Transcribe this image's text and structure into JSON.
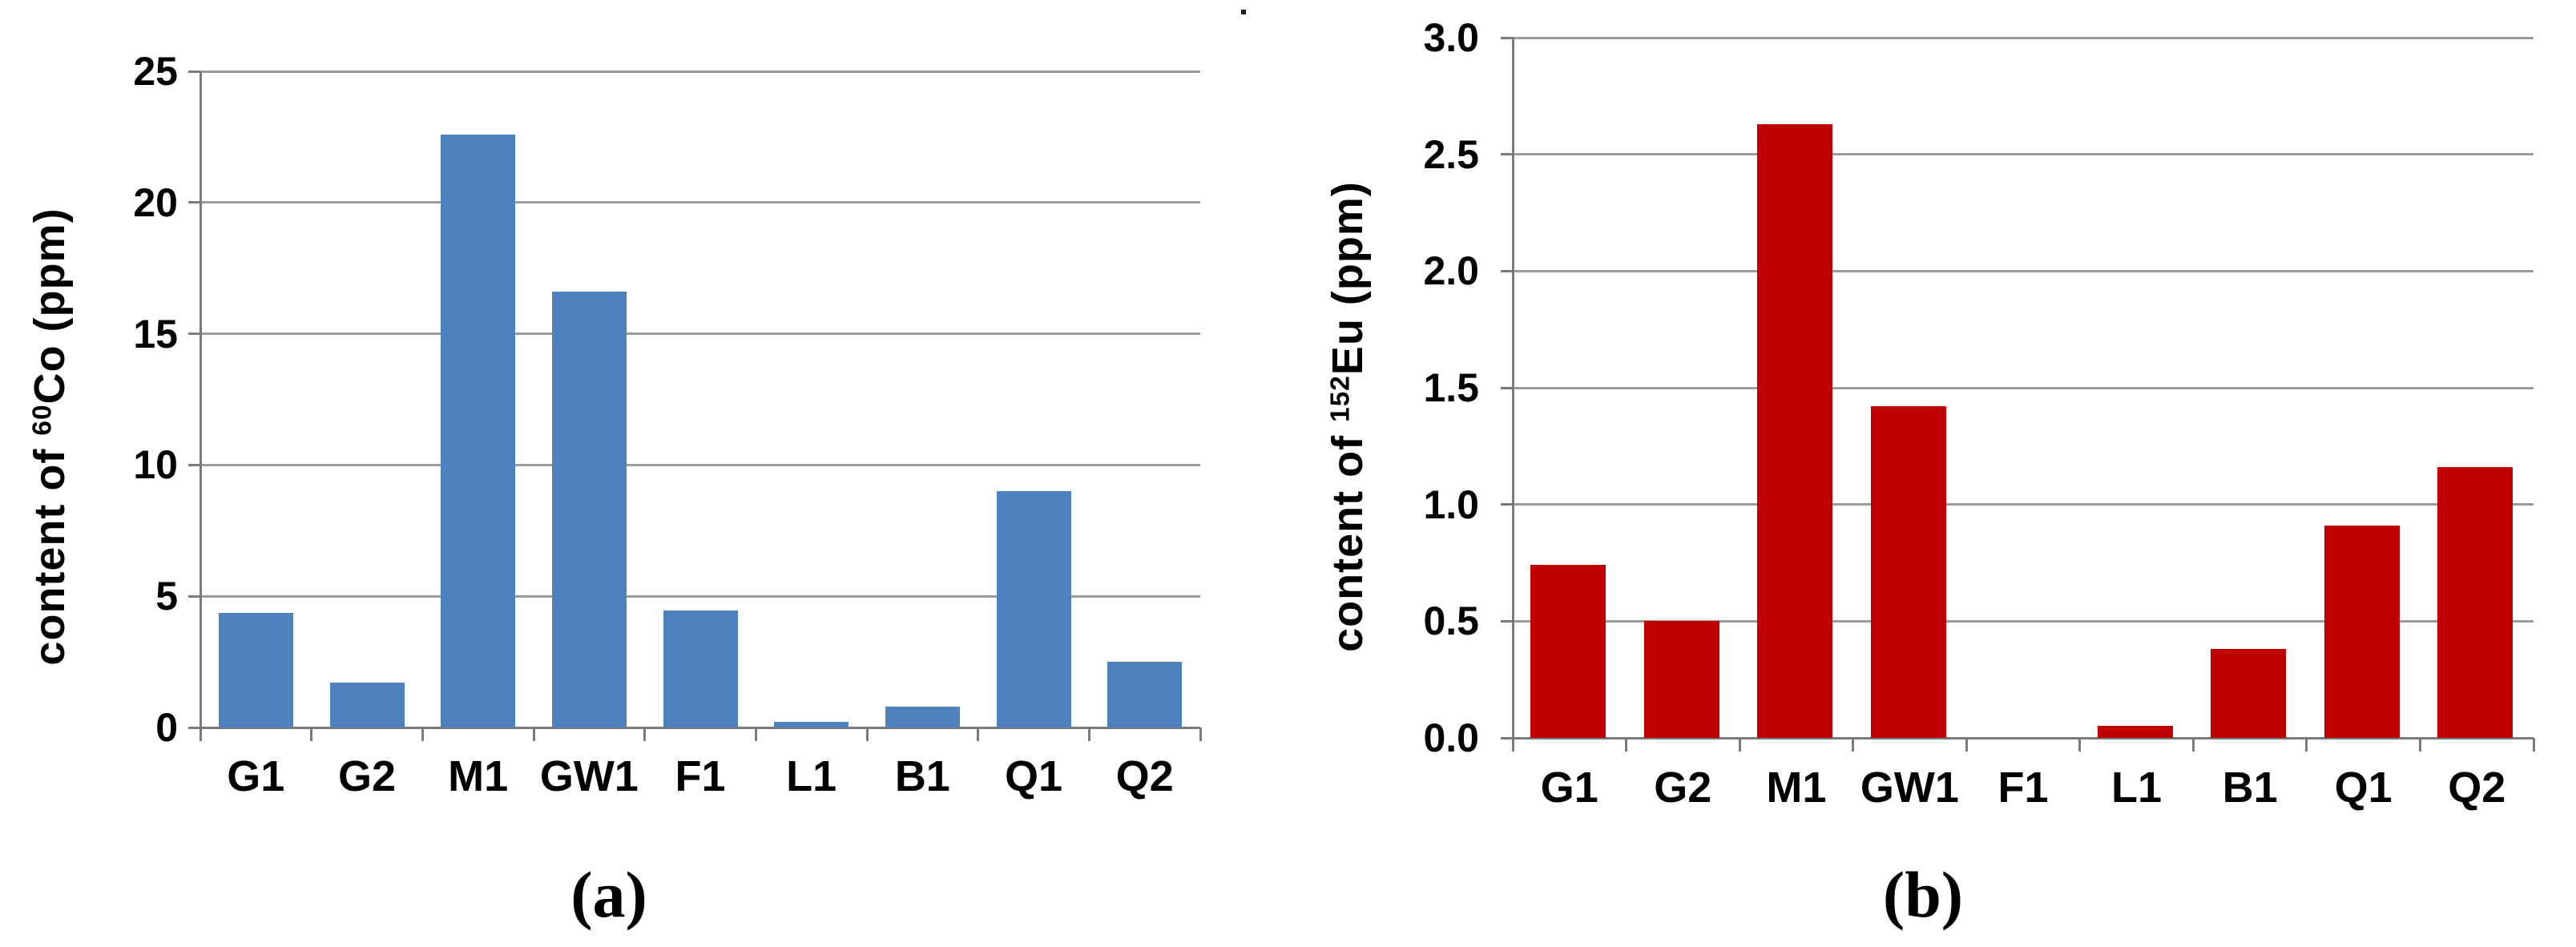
{
  "figure": {
    "background": "#ffffff",
    "captions": {
      "a": "(a)",
      "b": "(b)"
    }
  },
  "chart_data": [
    {
      "type": "bar",
      "panel": "a",
      "caption": "(a)",
      "title": "",
      "xlabel": "",
      "ylabel": "content of 60Co (ppm)",
      "ylabel_parts": {
        "prefix": "content of ",
        "isotope": "60",
        "rest": "Co (ppm)"
      },
      "categories": [
        "G1",
        "G2",
        "M1",
        "GW1",
        "F1",
        "L1",
        "B1",
        "Q1",
        "Q2"
      ],
      "values": [
        4.35,
        1.7,
        22.6,
        16.6,
        4.45,
        0.2,
        0.8,
        9.0,
        2.5
      ],
      "ylim": [
        0,
        25
      ],
      "ytick_values": [
        0,
        5,
        10,
        15,
        20,
        25
      ],
      "ytick_labels": [
        "0",
        "5",
        "10",
        "15",
        "20",
        "25"
      ],
      "bar_color": "#4F81BD",
      "grid": true,
      "legend": "none"
    },
    {
      "type": "bar",
      "panel": "b",
      "caption": "(b)",
      "title": "",
      "xlabel": "",
      "ylabel": "content of 152Eu (ppm)",
      "ylabel_parts": {
        "prefix": "content of ",
        "isotope": "152",
        "rest": "Eu (ppm)"
      },
      "categories": [
        "G1",
        "G2",
        "M1",
        "GW1",
        "F1",
        "L1",
        "B1",
        "Q1",
        "Q2"
      ],
      "values": [
        0.74,
        0.5,
        2.63,
        1.42,
        0,
        0.05,
        0.38,
        0.91,
        1.16
      ],
      "ylim": [
        0,
        3
      ],
      "ytick_values": [
        0,
        0.5,
        1.0,
        1.5,
        2.0,
        2.5,
        3.0
      ],
      "ytick_labels": [
        "0.0",
        "0.5",
        "1.0",
        "1.5",
        "2.0",
        "2.5",
        "3.0"
      ],
      "bar_color": "#C00000",
      "grid": true,
      "legend": "none"
    }
  ]
}
